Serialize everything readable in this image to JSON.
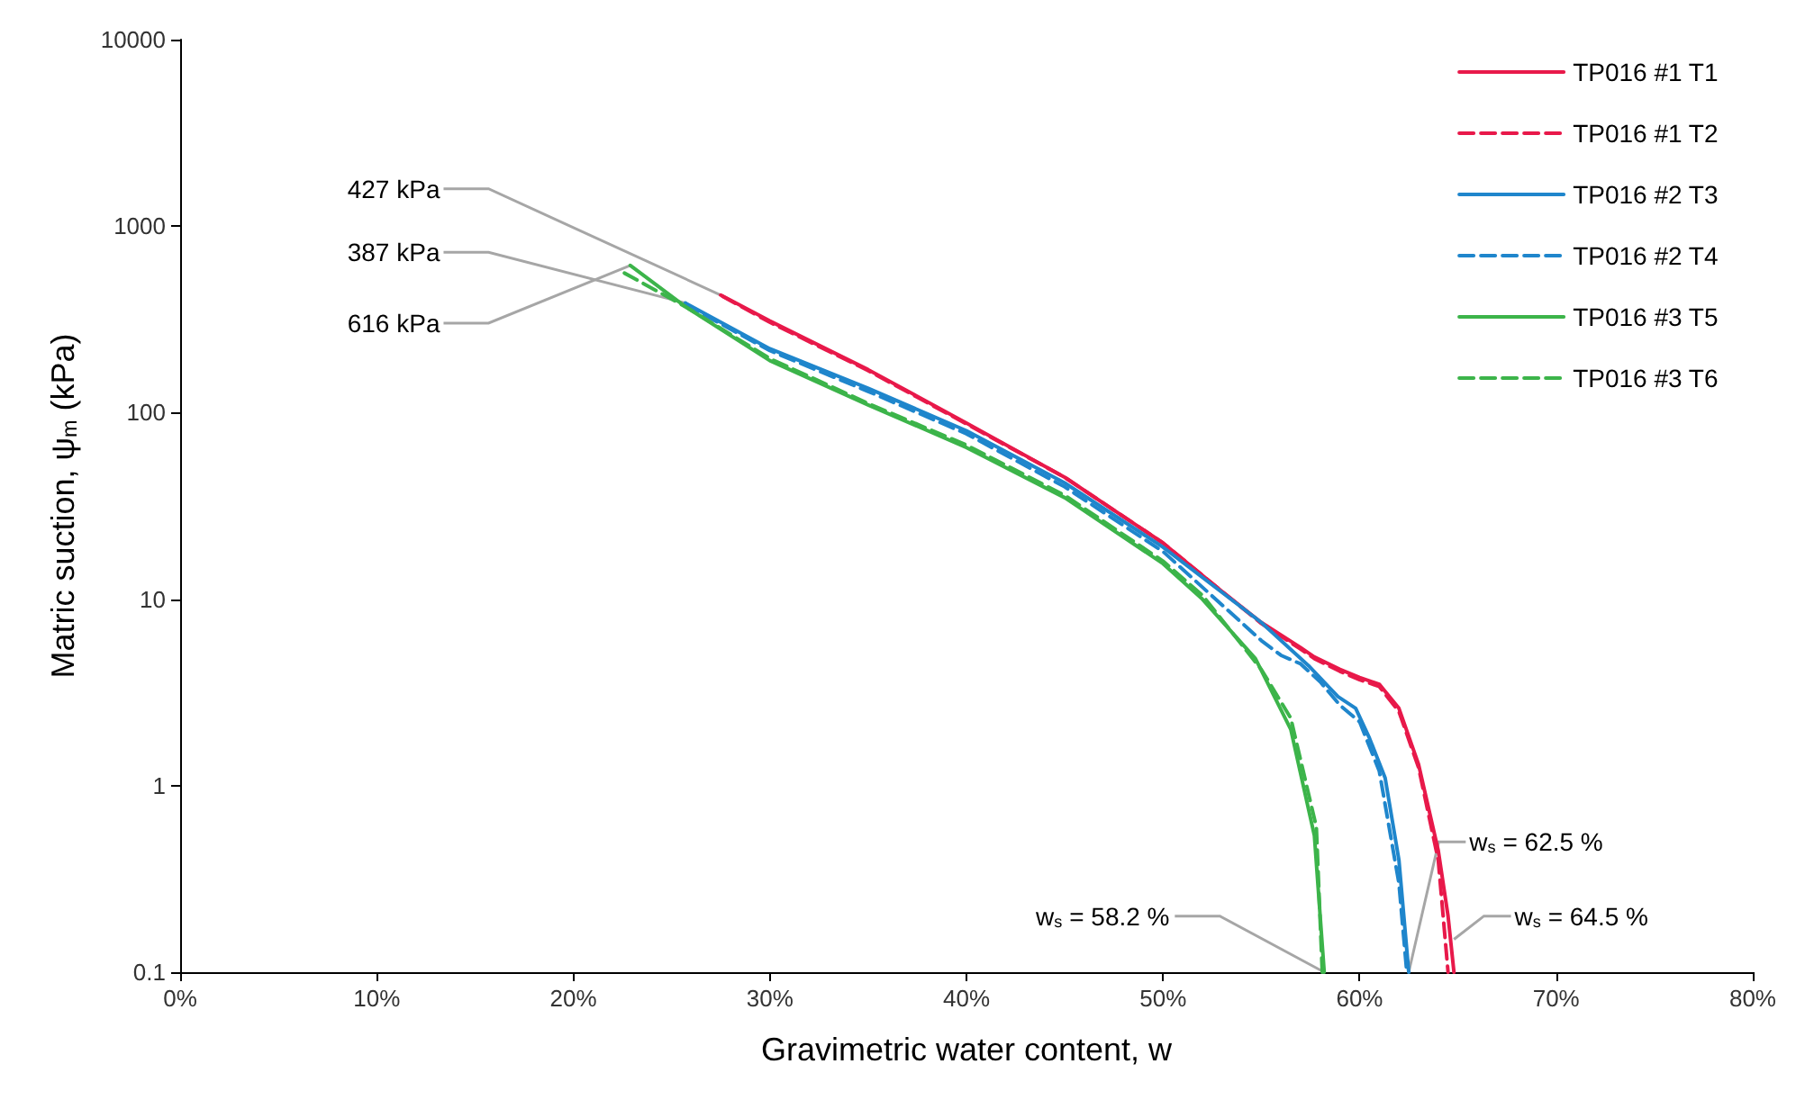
{
  "chart_data": {
    "type": "line",
    "xlabel": "Gravimetric water content, w",
    "ylabel": "Matric suction, ψ$_{m}$ (kPa)",
    "xlim": [
      0,
      80
    ],
    "xticks": [
      {
        "value": 0,
        "label": "0%"
      },
      {
        "value": 10,
        "label": "10%"
      },
      {
        "value": 20,
        "label": "20%"
      },
      {
        "value": 30,
        "label": "30%"
      },
      {
        "value": 40,
        "label": "40%"
      },
      {
        "value": 50,
        "label": "50%"
      },
      {
        "value": 60,
        "label": "60%"
      },
      {
        "value": 70,
        "label": "70%"
      },
      {
        "value": 80,
        "label": "80%"
      }
    ],
    "ylim": [
      0.1,
      10000
    ],
    "yticks": [
      0.1,
      1,
      10,
      100,
      1000,
      10000
    ],
    "log": "y",
    "grid": false,
    "legend": "top right",
    "marker": "none",
    "series": [
      {
        "name": "TP016 #1 T1",
        "color": "#e8194a",
        "line_style": "solid",
        "x": [
          27.5,
          30,
          35,
          40,
          45,
          50,
          53,
          55,
          57,
          57.7,
          59,
          60,
          61,
          62,
          63,
          64,
          64.5,
          64.8
        ],
        "values": [
          427,
          310,
          170,
          88,
          45,
          20,
          11,
          7.5,
          5.5,
          4.9,
          4.2,
          3.8,
          3.5,
          2.6,
          1.3,
          0.45,
          0.2,
          0.1
        ]
      },
      {
        "name": "TP016 #1 T2",
        "color": "#e8194a",
        "line_style": "dashed",
        "x": [
          27.6,
          30,
          35,
          40,
          45,
          50,
          53,
          55,
          57,
          57.7,
          59,
          60,
          61,
          62,
          63,
          64,
          64.5
        ],
        "values": [
          420,
          305,
          168,
          87,
          45,
          20,
          11,
          7.4,
          5.4,
          4.8,
          4.1,
          3.7,
          3.4,
          2.5,
          1.25,
          0.4,
          0.1
        ]
      },
      {
        "name": "TP016 #2 T3",
        "color": "#1f86cc",
        "line_style": "solid",
        "x": [
          25.7,
          30,
          35,
          40,
          45,
          50,
          55,
          57.4,
          58.9,
          59.8,
          60.5,
          61.3,
          62,
          62.5
        ],
        "values": [
          387,
          220,
          135,
          80,
          42,
          19,
          7.5,
          4.4,
          3.0,
          2.6,
          1.8,
          1.1,
          0.4,
          0.1
        ]
      },
      {
        "name": "TP016 #2 T4",
        "color": "#1f86cc",
        "line_style": "dashed",
        "x": [
          25.7,
          30,
          35,
          40,
          45,
          50,
          55,
          56,
          57,
          58,
          59,
          60,
          61,
          62,
          62.4
        ],
        "values": [
          380,
          215,
          130,
          77,
          40,
          18,
          6.0,
          5.0,
          4.5,
          3.6,
          2.7,
          2.2,
          1.2,
          0.3,
          0.1
        ]
      },
      {
        "name": "TP016 #3 T5",
        "color": "#3cb44a",
        "line_style": "solid",
        "x": [
          22.9,
          25.7,
          30,
          35,
          40,
          45,
          50,
          52,
          54.7,
          56.5,
          57.7,
          58.2
        ],
        "values": [
          616,
          370,
          190,
          110,
          65,
          35,
          15.5,
          10,
          4.8,
          2.0,
          0.54,
          0.1
        ]
      },
      {
        "name": "TP016 #3 T6",
        "color": "#3cb44a",
        "line_style": "dashed",
        "x": [
          22.6,
          25.7,
          30,
          35,
          40,
          45,
          50,
          52,
          55,
          56.5,
          57.8,
          58.1
        ],
        "values": [
          560,
          370,
          195,
          112,
          67,
          36,
          16,
          10.5,
          4.2,
          2.3,
          0.6,
          0.1
        ]
      }
    ],
    "annotations": [
      {
        "text": "427 kPa",
        "x": 27.5,
        "y": 427
      },
      {
        "text": "387 kPa",
        "x": 25.7,
        "y": 387
      },
      {
        "text": "616 kPa",
        "x": 22.9,
        "y": 616
      },
      {
        "text": "w$_{s}$ = 58.2 %",
        "x": 58.2,
        "y": 0.1
      },
      {
        "text": "w$_{s}$ = 62.5 %",
        "x": 62.5,
        "y": 0.1
      },
      {
        "text": "w$_{s}$ = 64.5 %",
        "x": 64.8,
        "y": 0.15
      }
    ]
  }
}
